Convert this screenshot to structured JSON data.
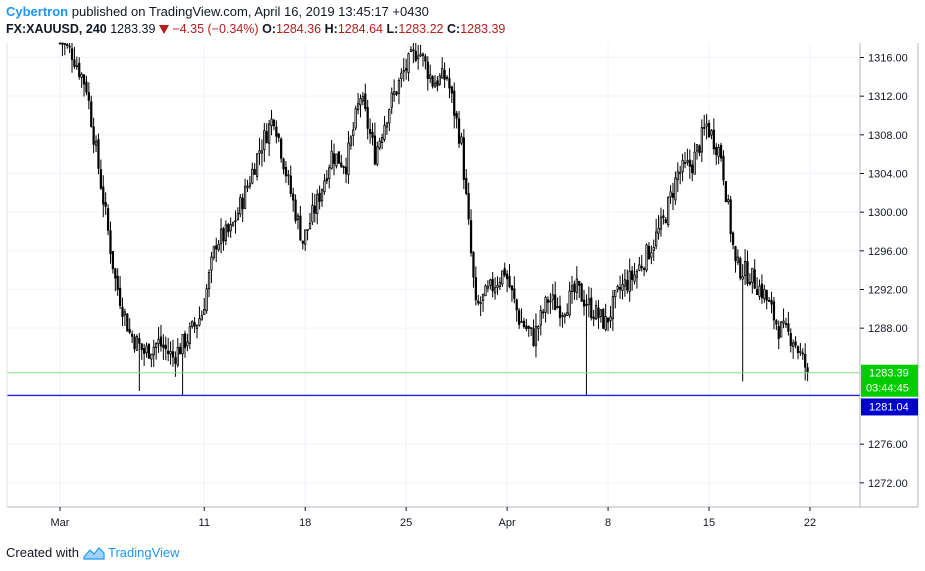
{
  "header": {
    "author": "Cybertron",
    "published_text": "published on TradingView.com, April 16, 2019 13:45:17 +0430",
    "symbol": "FX:XAUUSD, 240",
    "last": "1283.39",
    "change": "−4.35 (−0.34%)",
    "o_label": "O:",
    "o_value": "1284.36",
    "h_label": "H:",
    "h_value": "1284.64",
    "l_label": "L:",
    "l_value": "1283.22",
    "c_label": "C:",
    "c_value": "1283.39"
  },
  "footer": {
    "created_with": "Created with",
    "brand": "TradingView"
  },
  "colors": {
    "candle": "#000000",
    "grid": "#f0f3fa",
    "support_line": "#1e22e0",
    "price_line": "#7ee27e",
    "price_tag_bg": "#00cc00",
    "support_tag_bg": "#0000cc"
  },
  "chart_data": {
    "type": "candlestick",
    "symbol": "FX:XAUUSD",
    "timeframe": "240",
    "x_ticks": [
      "Mar",
      "11",
      "18",
      "25",
      "Apr",
      "8",
      "15",
      "22"
    ],
    "y_ticks": [
      "1316.00",
      "1312.00",
      "1308.00",
      "1304.00",
      "1300.00",
      "1296.00",
      "1292.00",
      "1288.00",
      "1276.00",
      "1272.00"
    ],
    "ylim": [
      1269.5,
      1317.5
    ],
    "y_tick_values": [
      1316,
      1312,
      1308,
      1304,
      1300,
      1296,
      1292,
      1288,
      1276,
      1272
    ],
    "last_price": 1283.39,
    "countdown": "03:44:45",
    "support_level": 1281.04,
    "support_label": "1281.04",
    "bars_per_day": 6,
    "tick_positions_days": [
      0,
      10,
      17,
      24,
      31,
      38,
      45,
      52
    ],
    "closes_daily": [
      1316.5,
      1313.0,
      1303.0,
      1293.0,
      1287.5,
      1285.5,
      1286.5,
      1285.0,
      1287.0,
      1289.5,
      1297.0,
      1298.0,
      1302.0,
      1306.5,
      1310.0,
      1303.0,
      1297.0,
      1301.0,
      1306.0,
      1305.0,
      1312.0,
      1306.0,
      1311.0,
      1314.5,
      1317.0,
      1313.5,
      1314.0,
      1307.0,
      1290.0,
      1292.0,
      1294.0,
      1289.0,
      1287.0,
      1291.0,
      1290.0,
      1292.0,
      1290.0,
      1288.5,
      1292.0,
      1293.5,
      1296.0,
      1299.0,
      1304.0,
      1305.0,
      1309.0,
      1306.0,
      1294.5,
      1293.5,
      1291.5,
      1288.0,
      1287.0,
      1283.5
    ],
    "notable_lows": [
      {
        "day": 5.5,
        "value": 1281.5
      },
      {
        "day": 8.5,
        "value": 1281.0
      },
      {
        "day": 36.5,
        "value": 1281.1
      },
      {
        "day": 47.3,
        "value": 1282.5
      }
    ]
  }
}
